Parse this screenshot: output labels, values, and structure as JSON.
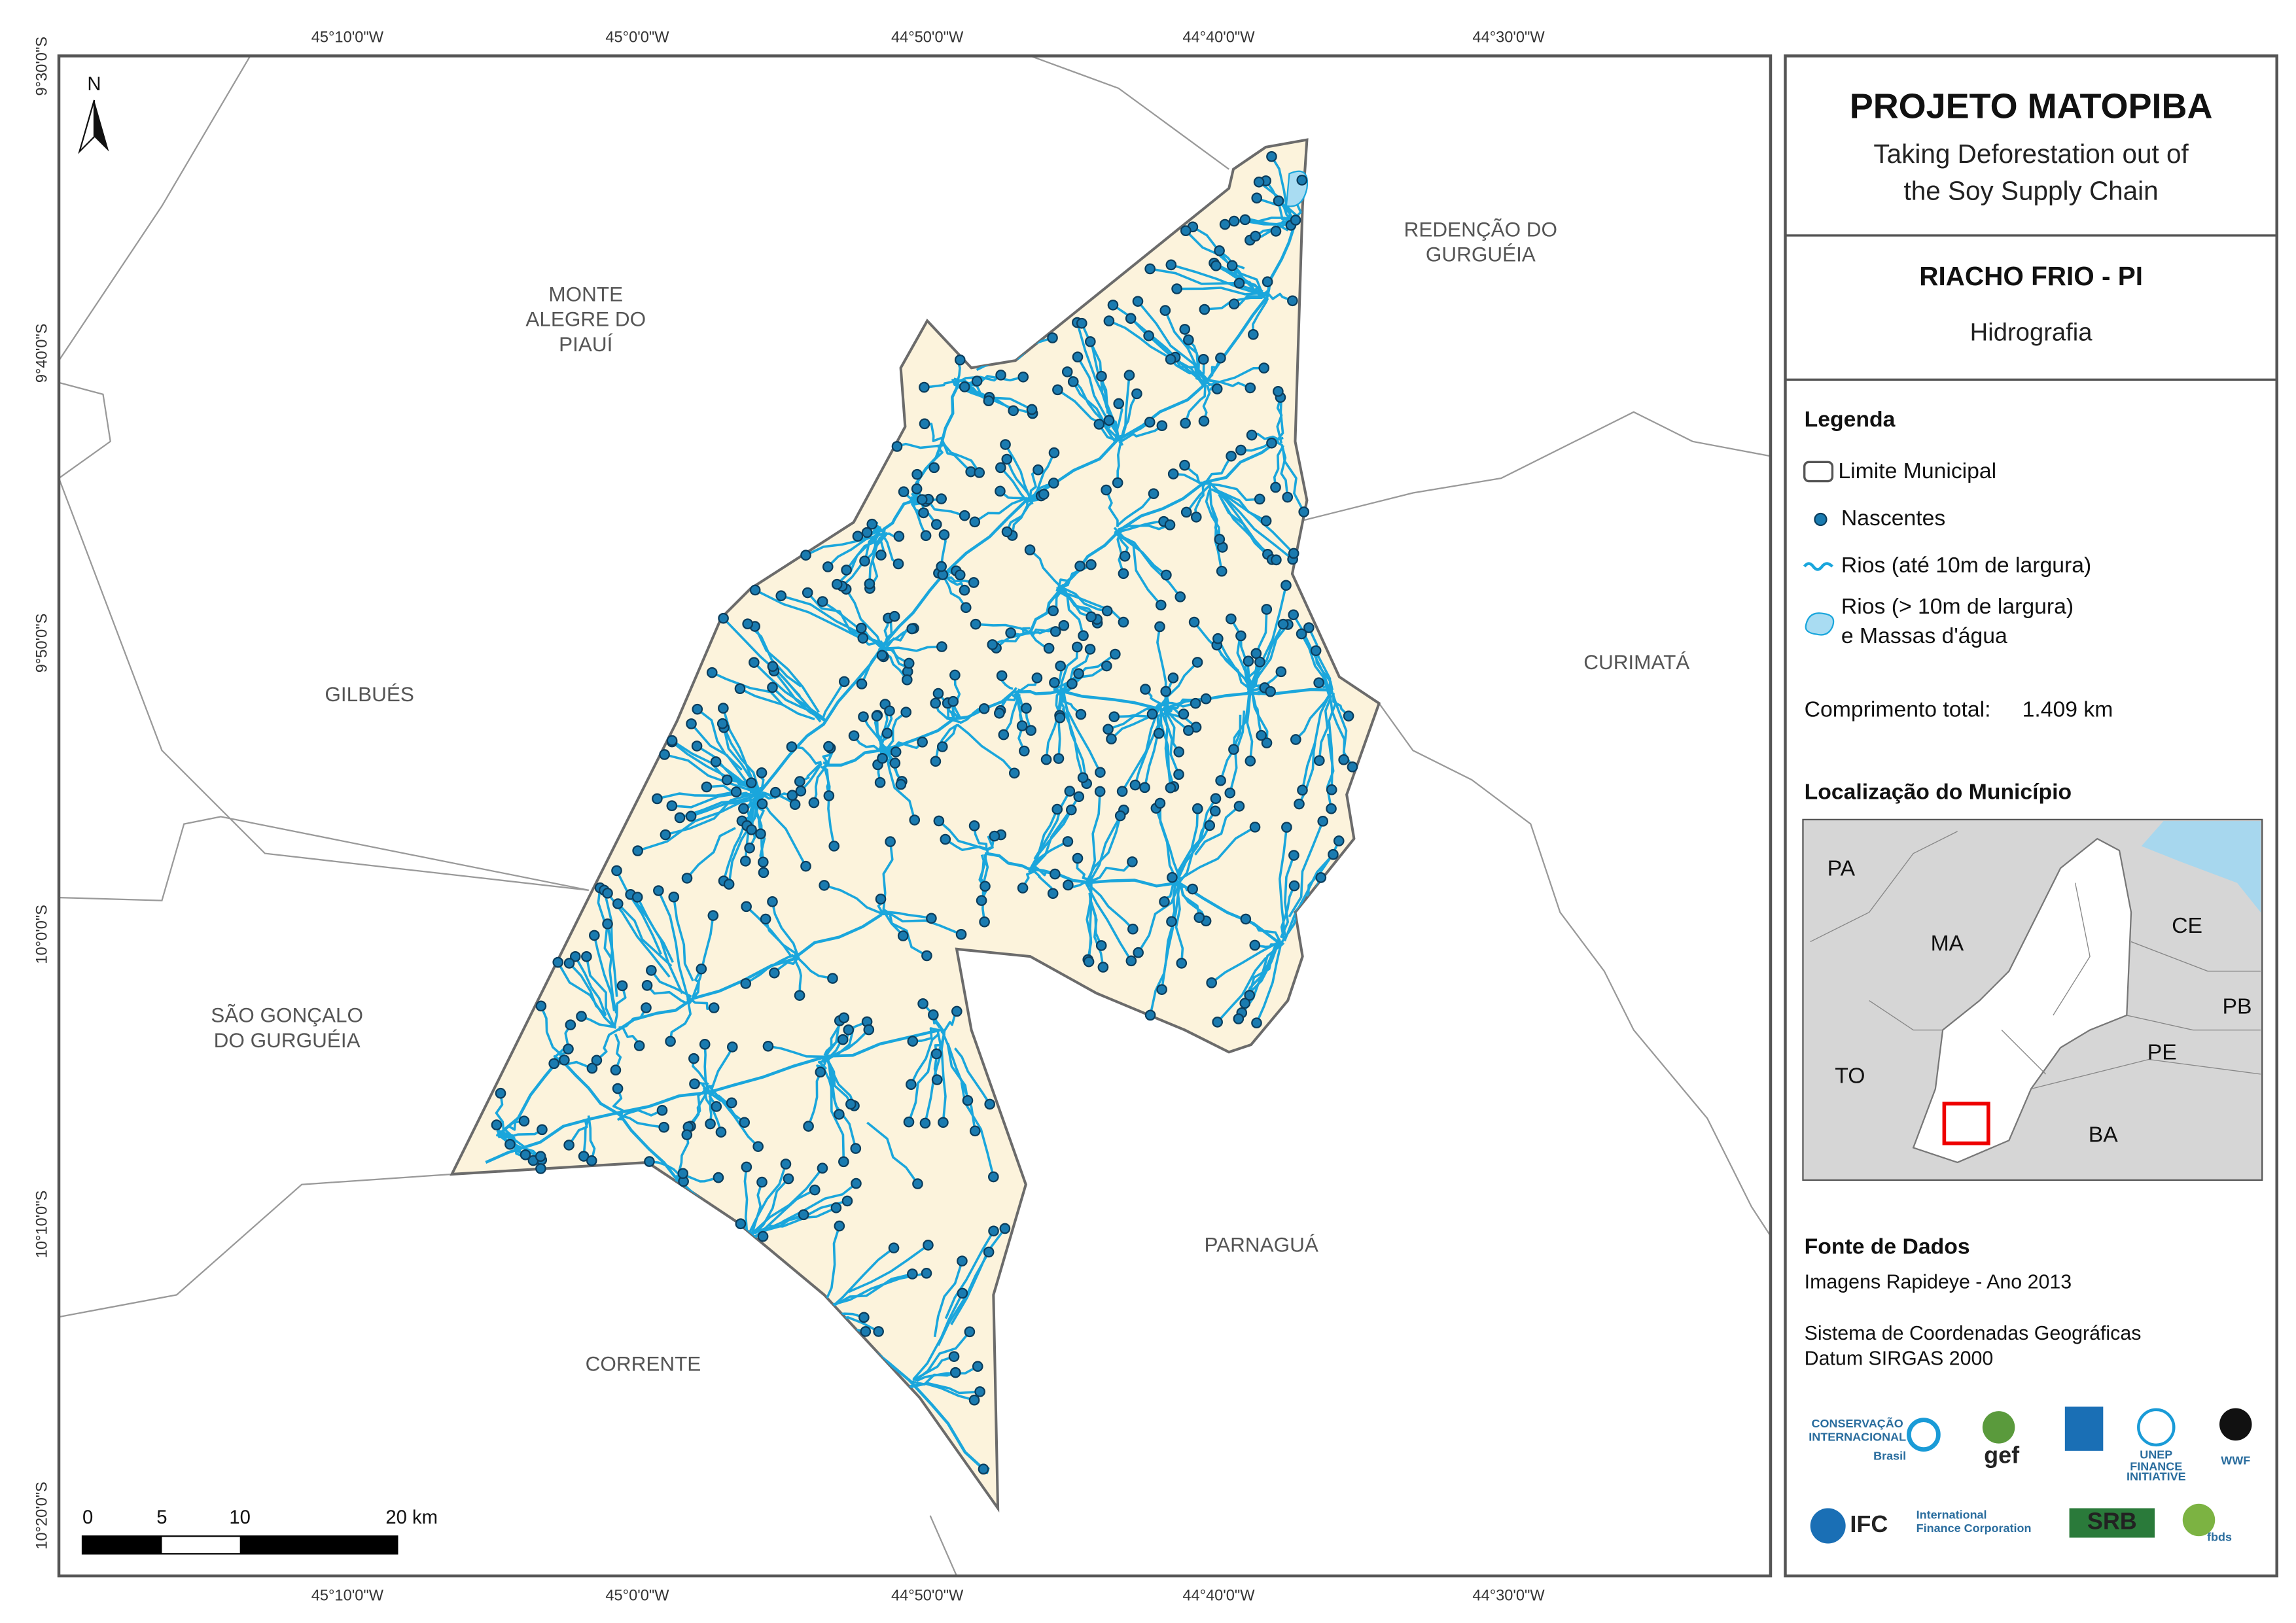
{
  "map": {
    "north_arrow": "N",
    "longitudes": [
      "45°10'0\"W",
      "45°0'0\"W",
      "44°50'0\"W",
      "44°40'0\"W",
      "44°30'0\"W"
    ],
    "latitudes": [
      "9°30'0\"S",
      "9°40'0\"S",
      "9°50'0\"S",
      "10°0'0\"S",
      "10°10'0\"S",
      "10°20'0\"S"
    ],
    "municipalities": [
      [
        "MONTE",
        "ALEGRE DO",
        "PIAUÍ"
      ],
      [
        "REDENÇÃO DO",
        "GURGUÉIA"
      ],
      [
        "CURIMATÁ"
      ],
      [
        "GILBUÉS"
      ],
      [
        "SÃO GONÇALO",
        "DO GURGUÉIA"
      ],
      [
        "PARNAGUÁ"
      ],
      [
        "CORRENTE"
      ]
    ],
    "scale_bar": [
      "0",
      "5",
      "10",
      "20 km"
    ]
  },
  "panel": {
    "title": "PROJETO MATOPIBA",
    "subtitle": [
      "Taking Deforestation out of",
      "the Soy Supply Chain"
    ],
    "municipality": "RIACHO FRIO - PI",
    "theme": "Hidrografia",
    "legend": {
      "title": "Legenda",
      "items": [
        "Limite Municipal",
        "Nascentes",
        "Rios (até 10m de largura)",
        [
          "Rios (> 10m de largura)",
          "e Massas d'água"
        ]
      ]
    },
    "total_length": {
      "label": "Comprimento total:",
      "value": "1.409 km"
    },
    "location": {
      "title": "Localização do Município",
      "states": [
        "PA",
        "MA",
        "CE",
        "PB",
        "TO",
        "PE",
        "BA"
      ]
    },
    "sources": {
      "title": "Fonte de Dados",
      "lines": [
        "Imagens Rapideye - Ano 2013",
        "Sistema de Coordenadas Geográficas",
        "Datum SIRGAS 2000"
      ]
    },
    "logos": [
      "CONSERVAÇÃO",
      "INTERNACIONAL",
      "Brasil",
      "gef",
      "WWF",
      "IFC",
      "International",
      "Finance Corporation",
      "SRB",
      "fbds",
      "UNEP",
      "FINANCE",
      "INITIATIVE"
    ]
  }
}
